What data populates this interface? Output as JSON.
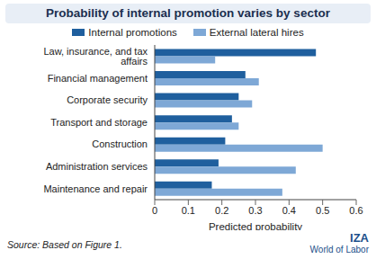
{
  "chart_data": {
    "type": "bar",
    "orientation": "horizontal",
    "title": "Probability of internal promotion varies by sector",
    "x_label": "Predicted probability",
    "categories": [
      "Law, insurance, and tax affairs",
      "Financial management",
      "Corporate security",
      "Transport and storage",
      "Construction",
      "Administration services",
      "Maintenance and repair"
    ],
    "series": [
      {
        "name": "Internal promotions",
        "color": "#1f5f9e",
        "values": [
          0.48,
          0.27,
          0.25,
          0.23,
          0.21,
          0.19,
          0.17
        ]
      },
      {
        "name": "External lateral hires",
        "color": "#7ea8d6",
        "values": [
          0.18,
          0.31,
          0.29,
          0.25,
          0.5,
          0.42,
          0.38
        ]
      }
    ],
    "xlim": [
      0,
      0.6
    ],
    "xticks": [
      0,
      0.1,
      0.2,
      0.3,
      0.4,
      0.5,
      0.6
    ],
    "grid": false,
    "legend": "top",
    "annotations": [
      "Source: Based on Figure 1.",
      "IZA",
      "World of Labor"
    ]
  }
}
